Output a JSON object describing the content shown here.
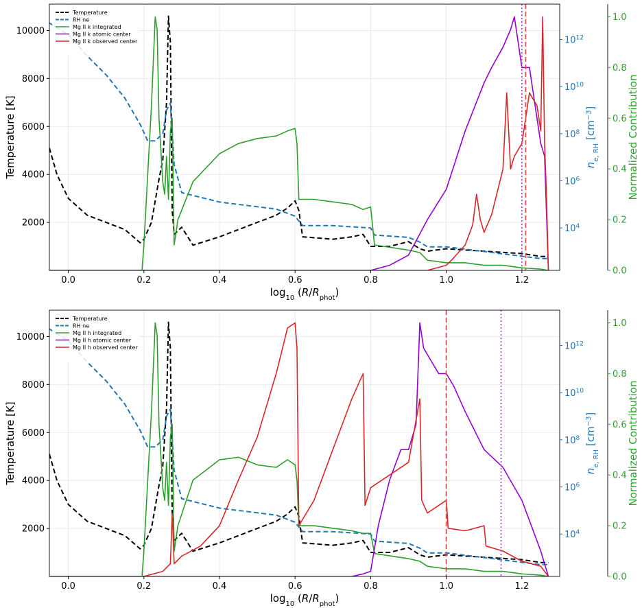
{
  "chart_data": [
    {
      "type": "line",
      "xlabel": "log10 (R/Rphot)",
      "ylabel": "Temperature [K]",
      "ylabel_right": "n_e,RH [cm^-3]",
      "ylabel_right2": "Normalized Contribution",
      "xlim": [
        -0.05,
        1.3
      ],
      "ylim": [
        0,
        11100
      ],
      "ylim_ne_log10": [
        2.2,
        13.5
      ],
      "ylim_contrib": [
        0,
        1.05
      ],
      "x_ticks": [
        "0.0",
        "0.2",
        "0.4",
        "0.6",
        "0.8",
        "1.0",
        "1.2"
      ],
      "y_ticks": [
        "2000",
        "4000",
        "6000",
        "8000",
        "10000"
      ],
      "ne_ticks": [
        "10^4",
        "10^6",
        "10^8",
        "10^10",
        "10^12"
      ],
      "contrib_ticks": [
        "0.0",
        "0.2",
        "0.4",
        "0.6",
        "0.8",
        "1.0"
      ],
      "grid": true,
      "legend_position": "top-left",
      "vlines": [
        {
          "x": 1.2,
          "style": "dotted",
          "color": "#b94fd0"
        },
        {
          "x": 1.21,
          "style": "dashed",
          "color": "#d9534f"
        }
      ],
      "series": [
        {
          "name": "Temperature",
          "axis": "temp",
          "style": "dashed",
          "color": "#000000",
          "x": [
            -0.05,
            -0.03,
            0.0,
            0.05,
            0.1,
            0.15,
            0.19,
            0.2,
            0.22,
            0.24,
            0.25,
            0.26,
            0.265,
            0.27,
            0.275,
            0.28,
            0.3,
            0.33,
            0.4,
            0.5,
            0.55,
            0.58,
            0.6,
            0.61,
            0.62,
            0.7,
            0.75,
            0.78,
            0.8,
            0.85,
            0.9,
            0.93,
            0.95,
            1.0,
            1.05,
            1.1,
            1.15,
            1.2,
            1.25,
            1.27
          ],
          "y": [
            5100,
            4000,
            3000,
            2300,
            2000,
            1700,
            1150,
            1300,
            2000,
            3800,
            4600,
            7000,
            10600,
            9500,
            2500,
            1500,
            1800,
            1050,
            1400,
            2000,
            2300,
            2600,
            2900,
            2500,
            1400,
            1300,
            1400,
            1500,
            1000,
            1000,
            1200,
            900,
            800,
            900,
            850,
            800,
            750,
            700,
            580,
            580
          ]
        },
        {
          "name": "RH ne",
          "axis": "ne",
          "style": "dashed",
          "color": "#1f77b4",
          "x": [
            -0.05,
            0.0,
            0.05,
            0.1,
            0.15,
            0.19,
            0.21,
            0.23,
            0.25,
            0.26,
            0.27,
            0.28,
            0.3,
            0.4,
            0.5,
            0.55,
            0.6,
            0.61,
            0.62,
            0.7,
            0.8,
            0.81,
            0.9,
            0.93,
            0.95,
            1.0,
            1.05,
            1.1,
            1.15,
            1.2,
            1.25,
            1.27
          ],
          "y": [
            12.7,
            12.2,
            11.3,
            10.5,
            9.5,
            8.4,
            7.7,
            7.7,
            8.0,
            9.0,
            9.3,
            6.7,
            5.5,
            5.1,
            4.9,
            4.8,
            4.5,
            4.3,
            4.1,
            4.1,
            4.0,
            3.7,
            3.6,
            3.4,
            3.2,
            3.2,
            3.1,
            3.0,
            2.9,
            2.8,
            2.7,
            2.7
          ]
        },
        {
          "name": "Mg II k integrated",
          "axis": "contrib",
          "style": "solid",
          "color": "#2ca02c",
          "x": [
            -0.05,
            0.19,
            0.195,
            0.2,
            0.22,
            0.23,
            0.235,
            0.24,
            0.25,
            0.255,
            0.26,
            0.265,
            0.27,
            0.275,
            0.28,
            0.29,
            0.33,
            0.4,
            0.45,
            0.5,
            0.55,
            0.58,
            0.6,
            0.605,
            0.61,
            0.65,
            0.7,
            0.75,
            0.78,
            0.8,
            0.81,
            0.9,
            0.93,
            0.95,
            1.0,
            1.05,
            1.1,
            1.15,
            1.2,
            1.25,
            1.27
          ],
          "y": [
            0,
            0,
            0,
            0.1,
            0.65,
            1.0,
            0.95,
            0.6,
            0.35,
            0.3,
            0.45,
            0.28,
            0.55,
            0.6,
            0.1,
            0.2,
            0.35,
            0.46,
            0.5,
            0.52,
            0.53,
            0.55,
            0.56,
            0.5,
            0.28,
            0.28,
            0.27,
            0.26,
            0.24,
            0.25,
            0.1,
            0.08,
            0.07,
            0.04,
            0.03,
            0.03,
            0.02,
            0.02,
            0.01,
            0.005,
            0
          ]
        },
        {
          "name": "Mg II k atomic center",
          "axis": "contrib",
          "style": "solid",
          "color": "#9400d3",
          "x": [
            -0.05,
            0.75,
            0.8,
            0.85,
            0.9,
            0.95,
            1.0,
            1.05,
            1.1,
            1.12,
            1.15,
            1.17,
            1.18,
            1.2,
            1.22,
            1.23,
            1.25,
            1.26,
            1.27
          ],
          "y": [
            0,
            0,
            0,
            0.02,
            0.06,
            0.2,
            0.32,
            0.55,
            0.74,
            0.8,
            0.88,
            0.95,
            1.0,
            0.8,
            0.8,
            0.7,
            0.5,
            0.45,
            0
          ]
        },
        {
          "name": "Mg II k observed center",
          "axis": "contrib",
          "style": "solid",
          "color": "#d62728",
          "x": [
            -0.05,
            0.9,
            0.95,
            1.0,
            1.02,
            1.05,
            1.07,
            1.08,
            1.09,
            1.1,
            1.12,
            1.15,
            1.16,
            1.17,
            1.18,
            1.2,
            1.22,
            1.24,
            1.25,
            1.255,
            1.26,
            1.265,
            1.27
          ],
          "y": [
            0,
            0,
            0,
            0.02,
            0.05,
            0.1,
            0.18,
            0.3,
            0.2,
            0.15,
            0.22,
            0.4,
            0.7,
            0.4,
            0.45,
            0.5,
            0.7,
            0.65,
            0.55,
            1.0,
            0.5,
            0.3,
            0
          ]
        }
      ]
    },
    {
      "type": "line",
      "xlabel": "log10 (R/Rphot)",
      "ylabel": "Temperature [K]",
      "ylabel_right": "n_e,RH [cm^-3]",
      "ylabel_right2": "Normalized Contribution",
      "xlim": [
        -0.05,
        1.3
      ],
      "ylim": [
        0,
        11100
      ],
      "ylim_ne_log10": [
        2.2,
        13.5
      ],
      "ylim_contrib": [
        0,
        1.05
      ],
      "x_ticks": [
        "0.0",
        "0.2",
        "0.4",
        "0.6",
        "0.8",
        "1.0",
        "1.2"
      ],
      "y_ticks": [
        "2000",
        "4000",
        "6000",
        "8000",
        "10000"
      ],
      "ne_ticks": [
        "10^4",
        "10^6",
        "10^8",
        "10^10",
        "10^12"
      ],
      "contrib_ticks": [
        "0.0",
        "0.2",
        "0.4",
        "0.6",
        "0.8",
        "1.0"
      ],
      "grid": true,
      "legend_position": "top-left",
      "vlines": [
        {
          "x": 1.0,
          "style": "dashed",
          "color": "#d9534f"
        },
        {
          "x": 1.145,
          "style": "dotted",
          "color": "#b94fd0"
        }
      ],
      "series": [
        {
          "name": "Temperature",
          "axis": "temp",
          "style": "dashed",
          "color": "#000000",
          "x": [
            -0.05,
            -0.03,
            0.0,
            0.05,
            0.1,
            0.15,
            0.19,
            0.2,
            0.22,
            0.24,
            0.25,
            0.26,
            0.265,
            0.27,
            0.275,
            0.28,
            0.3,
            0.33,
            0.4,
            0.5,
            0.55,
            0.58,
            0.6,
            0.61,
            0.62,
            0.7,
            0.75,
            0.78,
            0.8,
            0.85,
            0.9,
            0.93,
            0.95,
            1.0,
            1.05,
            1.1,
            1.15,
            1.2,
            1.25,
            1.27
          ],
          "y": [
            5100,
            4000,
            3000,
            2300,
            2000,
            1700,
            1150,
            1300,
            2000,
            3800,
            4600,
            7000,
            10600,
            9500,
            2500,
            1500,
            1800,
            1050,
            1400,
            2000,
            2300,
            2600,
            2900,
            2500,
            1400,
            1300,
            1400,
            1500,
            1000,
            1000,
            1200,
            900,
            800,
            900,
            850,
            800,
            750,
            700,
            580,
            580
          ]
        },
        {
          "name": "RH ne",
          "axis": "ne",
          "style": "dashed",
          "color": "#1f77b4",
          "x": [
            -0.05,
            0.0,
            0.05,
            0.1,
            0.15,
            0.19,
            0.21,
            0.23,
            0.25,
            0.26,
            0.27,
            0.28,
            0.3,
            0.4,
            0.5,
            0.55,
            0.6,
            0.61,
            0.62,
            0.7,
            0.8,
            0.81,
            0.9,
            0.93,
            0.95,
            1.0,
            1.05,
            1.1,
            1.15,
            1.2,
            1.25,
            1.27
          ],
          "y": [
            12.7,
            12.2,
            11.3,
            10.5,
            9.5,
            8.4,
            7.7,
            7.7,
            8.0,
            9.0,
            9.3,
            6.7,
            5.5,
            5.1,
            4.9,
            4.8,
            4.5,
            4.3,
            4.1,
            4.1,
            4.0,
            3.7,
            3.6,
            3.4,
            3.2,
            3.2,
            3.1,
            3.0,
            2.9,
            2.8,
            2.7,
            2.7
          ]
        },
        {
          "name": "Mg II h integrated",
          "axis": "contrib",
          "style": "solid",
          "color": "#2ca02c",
          "x": [
            -0.05,
            0.19,
            0.195,
            0.2,
            0.22,
            0.23,
            0.235,
            0.24,
            0.25,
            0.255,
            0.26,
            0.265,
            0.27,
            0.275,
            0.28,
            0.29,
            0.33,
            0.4,
            0.45,
            0.5,
            0.55,
            0.58,
            0.6,
            0.605,
            0.61,
            0.65,
            0.7,
            0.75,
            0.78,
            0.8,
            0.81,
            0.9,
            0.93,
            0.95,
            1.0,
            1.05,
            1.1,
            1.15,
            1.2,
            1.25,
            1.27
          ],
          "y": [
            0,
            0,
            0,
            0.1,
            0.65,
            1.0,
            0.95,
            0.6,
            0.35,
            0.3,
            0.45,
            0.28,
            0.55,
            0.6,
            0.1,
            0.2,
            0.38,
            0.46,
            0.47,
            0.44,
            0.43,
            0.46,
            0.44,
            0.38,
            0.2,
            0.2,
            0.19,
            0.18,
            0.17,
            0.17,
            0.09,
            0.07,
            0.06,
            0.04,
            0.03,
            0.03,
            0.02,
            0.02,
            0.01,
            0.005,
            0
          ]
        },
        {
          "name": "Mg II h atomic center",
          "axis": "contrib",
          "style": "solid",
          "color": "#9400d3",
          "x": [
            -0.05,
            0.75,
            0.78,
            0.8,
            0.82,
            0.85,
            0.88,
            0.9,
            0.92,
            0.93,
            0.94,
            0.96,
            0.98,
            1.0,
            1.02,
            1.05,
            1.1,
            1.15,
            1.2,
            1.25,
            1.27
          ],
          "y": [
            0,
            0,
            0.01,
            0.02,
            0.2,
            0.38,
            0.5,
            0.5,
            0.6,
            1.0,
            0.9,
            0.85,
            0.8,
            0.8,
            0.75,
            0.65,
            0.5,
            0.43,
            0.3,
            0.1,
            0
          ]
        },
        {
          "name": "Mg II h observed center",
          "axis": "contrib",
          "style": "solid",
          "color": "#d62728",
          "x": [
            -0.05,
            0.2,
            0.25,
            0.27,
            0.275,
            0.28,
            0.3,
            0.35,
            0.4,
            0.45,
            0.5,
            0.55,
            0.58,
            0.6,
            0.605,
            0.61,
            0.65,
            0.7,
            0.75,
            0.78,
            0.785,
            0.8,
            0.85,
            0.9,
            0.93,
            0.935,
            0.95,
            1.0,
            1.005,
            1.05,
            1.1,
            1.105,
            1.15,
            1.2,
            1.25,
            1.27
          ],
          "y": [
            0,
            0,
            0.02,
            0.05,
            0.25,
            0.05,
            0.08,
            0.12,
            0.2,
            0.38,
            0.55,
            0.8,
            0.98,
            1.0,
            0.9,
            0.2,
            0.3,
            0.5,
            0.7,
            0.8,
            0.28,
            0.35,
            0.4,
            0.45,
            0.7,
            0.3,
            0.25,
            0.3,
            0.19,
            0.18,
            0.2,
            0.12,
            0.1,
            0.06,
            0.04,
            0
          ]
        }
      ]
    }
  ]
}
